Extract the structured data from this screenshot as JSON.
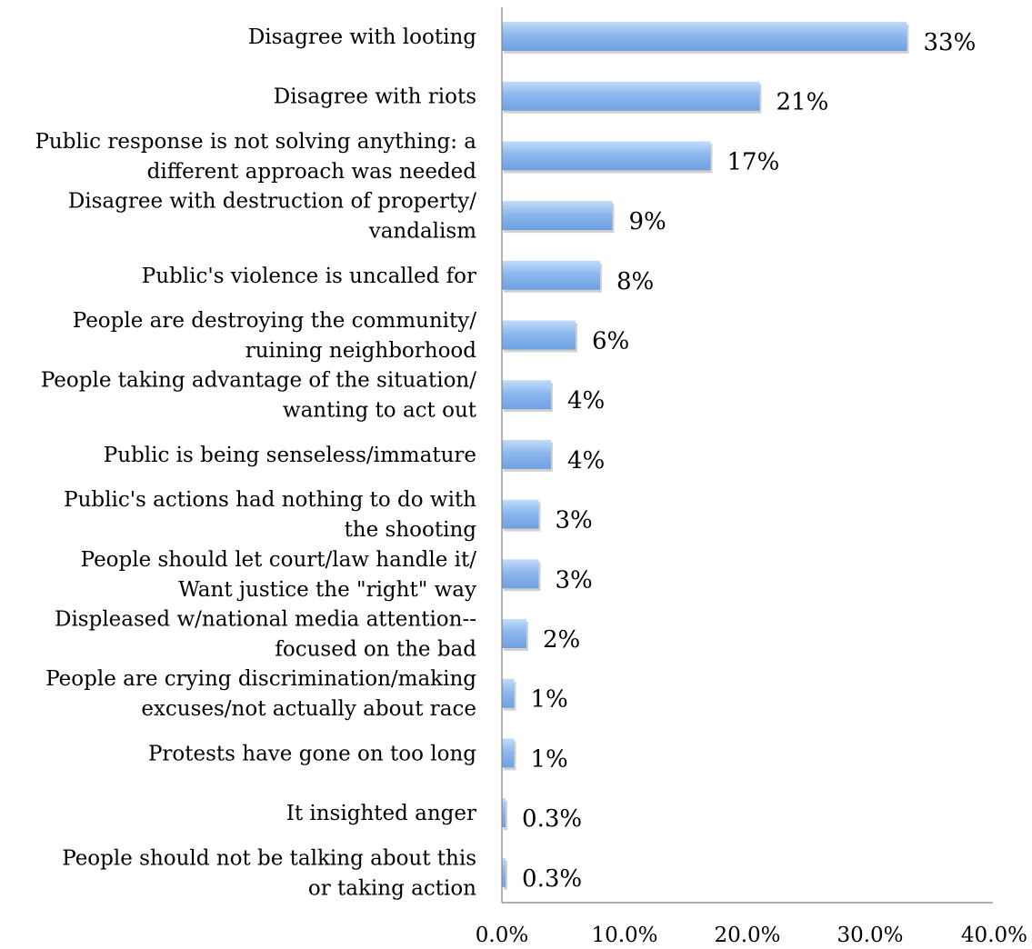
{
  "chart_data": {
    "type": "bar",
    "orientation": "horizontal",
    "categories": [
      [
        "Disagree with looting"
      ],
      [
        "Disagree with riots"
      ],
      [
        "Public response is not solving anything: a",
        "different approach was needed"
      ],
      [
        "Disagree with destruction of property/",
        "vandalism"
      ],
      [
        "Public's violence is uncalled for"
      ],
      [
        "People are destroying the community/",
        "ruining neighborhood"
      ],
      [
        "People taking advantage of the situation/",
        "wanting to act out"
      ],
      [
        "Public is being senseless/immature"
      ],
      [
        "Public's actions had nothing to do with",
        "the shooting"
      ],
      [
        "People should let court/law handle it/",
        "Want justice the \"right\" way"
      ],
      [
        "Displeased w/national media attention--",
        "focused on the bad"
      ],
      [
        "People are crying discrimination/making",
        "excuses/not actually about race"
      ],
      [
        "Protests have gone on too long"
      ],
      [
        "It insighted anger"
      ],
      [
        "People should not be talking about this",
        "or taking action"
      ]
    ],
    "values": [
      33,
      21,
      17,
      9,
      8,
      6,
      4,
      4,
      3,
      3,
      2,
      1,
      1,
      0.3,
      0.3
    ],
    "value_labels": [
      "33%",
      "21%",
      "17%",
      "9%",
      "8%",
      "6%",
      "4%",
      "4%",
      "3%",
      "3%",
      "2%",
      "1%",
      "1%",
      "0.3%",
      "0.3%"
    ],
    "xlim": [
      0,
      40
    ],
    "x_ticks": [
      0,
      10,
      20,
      30,
      40
    ],
    "x_tick_labels": [
      "0.0%",
      "10.0%",
      "20.0%",
      "30.0%",
      "40.0%"
    ],
    "grid": false,
    "legend": "none",
    "bar_color": "#8db8ee"
  }
}
